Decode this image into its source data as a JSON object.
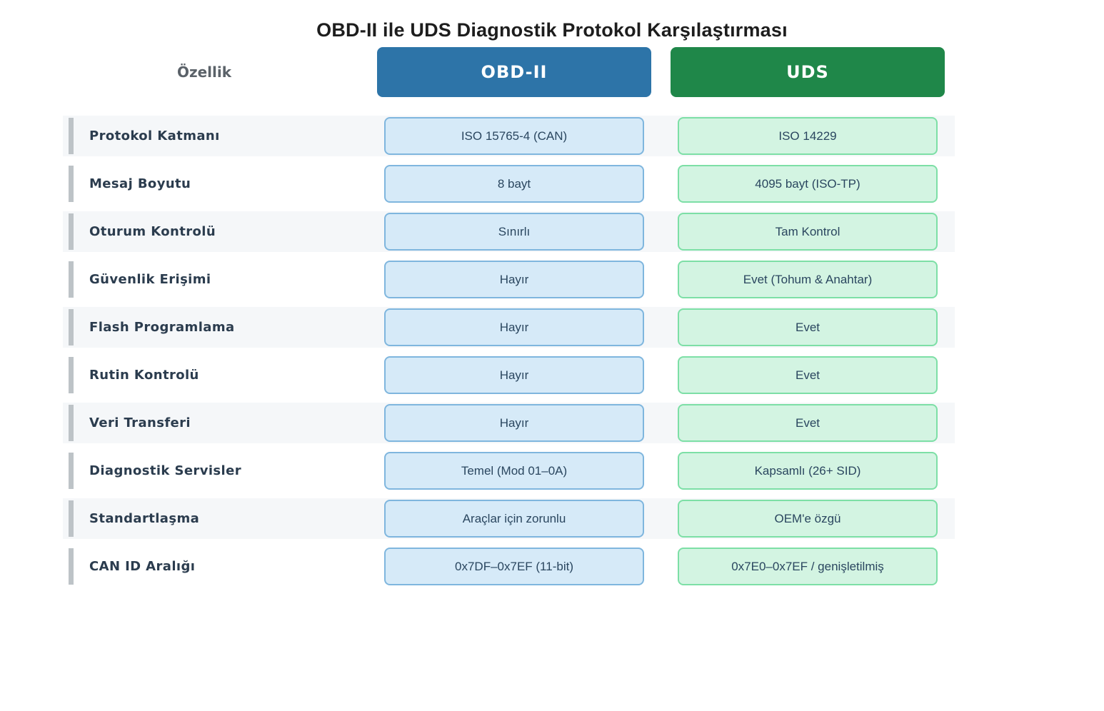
{
  "title": "OBD-II ile UDS Diagnostik Protokol Karşılaştırması",
  "header": {
    "feature_label": "Özellik",
    "obd_label": "OBD-II",
    "uds_label": "UDS"
  },
  "colors": {
    "blue_header": "#2d74a8",
    "green_header": "#1f8749",
    "blue_fill": "#d6eaf8",
    "blue_border": "#7fb6de",
    "green_fill": "#d3f4e2",
    "green_border": "#7ddfa6",
    "band_gray": "#f5f7f9",
    "bar_gray": "#bdc3c7",
    "label_color": "#2b3c4e",
    "value_color": "#2a465f",
    "ozellik_color": "#5b6269",
    "title_color": "#1d1d1d"
  },
  "chart_data": {
    "type": "table",
    "title": "OBD-II ile UDS Diagnostik Protokol Karşılaştırması",
    "columns": [
      "Özellik",
      "OBD-II",
      "UDS"
    ],
    "rows": [
      [
        "Protokol Katmanı",
        "ISO 15765-4 (CAN)",
        "ISO 14229"
      ],
      [
        "Mesaj Boyutu",
        "8 bayt",
        "4095 bayt (ISO-TP)"
      ],
      [
        "Oturum Kontrolü",
        "Sınırlı",
        "Tam Kontrol"
      ],
      [
        "Güvenlik Erişimi",
        "Hayır",
        "Evet (Tohum & Anahtar)"
      ],
      [
        "Flash Programlama",
        "Hayır",
        "Evet"
      ],
      [
        "Rutin Kontrolü",
        "Hayır",
        "Evet"
      ],
      [
        "Veri Transferi",
        "Hayır",
        "Evet"
      ],
      [
        "Diagnostik Servisler",
        "Temel (Mod 01–0A)",
        "Kapsamlı (26+ SID)"
      ],
      [
        "Standartlaşma",
        "Araçlar için zorunlu",
        "OEM'e özgü"
      ],
      [
        "CAN ID Aralığı",
        "0x7DF–0x7EF (11-bit)",
        "0x7E0–0x7EF / genişletilmiş"
      ]
    ],
    "layout": {
      "alternating_row_shading": true,
      "obd_column_style": "light-blue rounded box",
      "uds_column_style": "light-green rounded box"
    }
  }
}
